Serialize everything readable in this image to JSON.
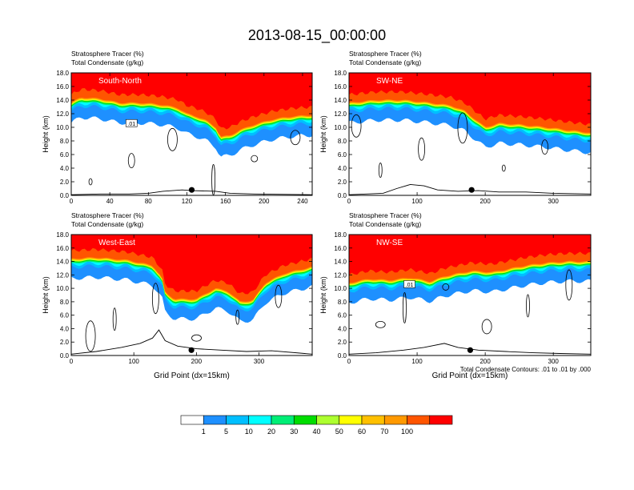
{
  "figure": {
    "title": "2013-08-15_00:00:00",
    "contour_note": "Total Condensate Contours: .01 to .01 by .000"
  },
  "colorbar": {
    "labels": [
      "1",
      "5",
      "10",
      "20",
      "30",
      "40",
      "50",
      "60",
      "70",
      "100"
    ],
    "colors": [
      "#ffffff",
      "#1e90ff",
      "#00bfff",
      "#00ffff",
      "#00ee76",
      "#00dd00",
      "#adff2f",
      "#ffff00",
      "#ffc000",
      "#ff9900",
      "#ff5500",
      "#ff0000"
    ]
  },
  "chart_data": [
    {
      "type": "heatmap",
      "panel_label": "South-North",
      "line1": "Stratosphere Tracer   (%)",
      "line2": "Total Condensate   (g/kg)",
      "ylabel": "Height (km)",
      "xlabel": "",
      "xlim": [
        0,
        250
      ],
      "xticks": [
        "0",
        "40",
        "80",
        "120",
        "160",
        "200",
        "240"
      ],
      "ylim": [
        0,
        18
      ],
      "yticks": [
        "0.0",
        "2.0",
        "4.0",
        "6.0",
        "8.0",
        "10.0",
        "12.0",
        "14.0",
        "16.0",
        "18.0"
      ],
      "contour_label": ".01",
      "marker_x": 125,
      "tropopause_km": [
        [
          0,
          13.6
        ],
        [
          10,
          14.4
        ],
        [
          30,
          14.2
        ],
        [
          50,
          13.6
        ],
        [
          70,
          13.6
        ],
        [
          90,
          13.4
        ],
        [
          110,
          12.9
        ],
        [
          120,
          12.0
        ],
        [
          130,
          11.6
        ],
        [
          140,
          11.0
        ],
        [
          150,
          10.0
        ],
        [
          155,
          8.6
        ],
        [
          165,
          8.8
        ],
        [
          175,
          9.6
        ],
        [
          190,
          10.4
        ],
        [
          210,
          11.2
        ],
        [
          230,
          11.6
        ],
        [
          250,
          11.8
        ]
      ],
      "terrain_km": [
        [
          0,
          0.1
        ],
        [
          30,
          0.2
        ],
        [
          60,
          0.2
        ],
        [
          80,
          0.3
        ],
        [
          95,
          0.6
        ],
        [
          115,
          0.8
        ],
        [
          125,
          0.7
        ],
        [
          150,
          0.6
        ],
        [
          165,
          0.3
        ],
        [
          190,
          0.2
        ],
        [
          250,
          0.1
        ]
      ]
    },
    {
      "type": "heatmap",
      "panel_label": "SW-NE",
      "line1": "Stratosphere Tracer   (%)",
      "line2": "Total Condensate   (g/kg)",
      "ylabel": "Height (km)",
      "xlabel": "",
      "xlim": [
        0,
        355
      ],
      "xticks": [
        "0",
        "100",
        "200",
        "300"
      ],
      "ylim": [
        0,
        18
      ],
      "yticks": [
        "0.0",
        "2.0",
        "4.0",
        "6.0",
        "8.0",
        "10.0",
        "12.0",
        "14.0",
        "16.0",
        "18.0"
      ],
      "contour_label": "",
      "marker_x": 180,
      "tropopause_km": [
        [
          0,
          13.6
        ],
        [
          40,
          14.0
        ],
        [
          80,
          14.0
        ],
        [
          120,
          13.6
        ],
        [
          150,
          13.2
        ],
        [
          170,
          12.4
        ],
        [
          190,
          10.8
        ],
        [
          200,
          10.0
        ],
        [
          220,
          10.6
        ],
        [
          250,
          10.4
        ],
        [
          290,
          10.0
        ],
        [
          320,
          9.6
        ],
        [
          355,
          9.2
        ]
      ],
      "terrain_km": [
        [
          0,
          0.1
        ],
        [
          50,
          0.3
        ],
        [
          70,
          1.0
        ],
        [
          90,
          1.6
        ],
        [
          110,
          1.4
        ],
        [
          130,
          0.8
        ],
        [
          160,
          0.6
        ],
        [
          190,
          0.7
        ],
        [
          220,
          0.5
        ],
        [
          260,
          0.5
        ],
        [
          300,
          0.3
        ],
        [
          355,
          0.2
        ]
      ]
    },
    {
      "type": "heatmap",
      "panel_label": "West-East",
      "line1": "Stratosphere Tracer   (%)",
      "line2": "Total Condensate   (g/kg)",
      "ylabel": "Height (km)",
      "xlabel": "Grid Point (dx=15km)",
      "xlim": [
        0,
        385
      ],
      "xticks": [
        "0",
        "100",
        "200",
        "300"
      ],
      "ylim": [
        0,
        18
      ],
      "yticks": [
        "0.0",
        "2.0",
        "4.0",
        "6.0",
        "8.0",
        "10.0",
        "12.0",
        "14.0",
        "16.0",
        "18.0"
      ],
      "contour_label": "",
      "marker_x": 192,
      "tropopause_km": [
        [
          0,
          14.4
        ],
        [
          40,
          14.6
        ],
        [
          90,
          14.2
        ],
        [
          130,
          13.4
        ],
        [
          145,
          11.6
        ],
        [
          150,
          9.4
        ],
        [
          165,
          8.4
        ],
        [
          200,
          8.4
        ],
        [
          230,
          10.0
        ],
        [
          250,
          9.6
        ],
        [
          270,
          8.0
        ],
        [
          290,
          8.2
        ],
        [
          310,
          10.8
        ],
        [
          340,
          12.2
        ],
        [
          385,
          13.2
        ]
      ],
      "terrain_km": [
        [
          0,
          0.2
        ],
        [
          40,
          0.6
        ],
        [
          80,
          1.2
        ],
        [
          110,
          1.8
        ],
        [
          130,
          2.6
        ],
        [
          140,
          3.8
        ],
        [
          150,
          2.2
        ],
        [
          170,
          1.4
        ],
        [
          200,
          1.0
        ],
        [
          240,
          0.8
        ],
        [
          280,
          0.6
        ],
        [
          320,
          0.7
        ],
        [
          385,
          0.2
        ]
      ]
    },
    {
      "type": "heatmap",
      "panel_label": "NW-SE",
      "line1": "Stratosphere Tracer   (%)",
      "line2": "Total Condensate   (g/kg)",
      "ylabel": "Height (km)",
      "xlabel": "Grid Point (dx=15km)",
      "xlim": [
        0,
        355
      ],
      "xticks": [
        "0",
        "100",
        "200",
        "300"
      ],
      "ylim": [
        0,
        18
      ],
      "yticks": [
        "0.0",
        "2.0",
        "4.0",
        "6.0",
        "8.0",
        "10.0",
        "12.0",
        "14.0",
        "16.0",
        "18.0"
      ],
      "contour_label": ".01",
      "marker_x": 178,
      "tropopause_km": [
        [
          0,
          10.8
        ],
        [
          30,
          11.4
        ],
        [
          60,
          11.2
        ],
        [
          90,
          11.6
        ],
        [
          120,
          11.0
        ],
        [
          140,
          11.8
        ],
        [
          180,
          12.6
        ],
        [
          210,
          12.4
        ],
        [
          240,
          13.0
        ],
        [
          260,
          13.4
        ],
        [
          290,
          13.8
        ],
        [
          320,
          14.0
        ],
        [
          355,
          14.0
        ]
      ],
      "terrain_km": [
        [
          0,
          0.2
        ],
        [
          40,
          0.4
        ],
        [
          80,
          0.8
        ],
        [
          110,
          1.2
        ],
        [
          140,
          1.8
        ],
        [
          160,
          1.2
        ],
        [
          190,
          0.8
        ],
        [
          230,
          0.6
        ],
        [
          270,
          0.4
        ],
        [
          310,
          0.3
        ],
        [
          355,
          0.2
        ]
      ]
    }
  ]
}
